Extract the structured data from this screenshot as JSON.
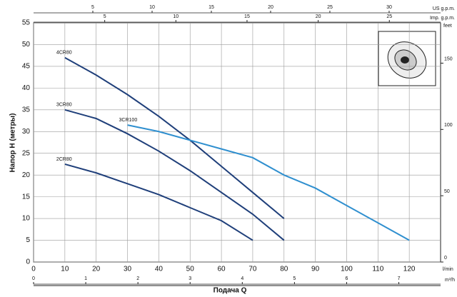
{
  "chart_data": {
    "type": "line",
    "xlabel": "Подача Q",
    "ylabel": "Напор H (метры)",
    "xunit": "l/min",
    "xlim": [
      0,
      130
    ],
    "xticks": [
      0,
      10,
      20,
      30,
      40,
      50,
      60,
      70,
      80,
      90,
      100,
      110,
      120
    ],
    "ylim": [
      0,
      55
    ],
    "yticks": [
      0,
      5,
      10,
      15,
      20,
      25,
      30,
      35,
      40,
      45,
      50,
      55
    ],
    "grid": true,
    "extra_axes": [
      {
        "label": "US g.p.m.",
        "position": "top",
        "lim": [
          0,
          34.34
        ],
        "ticks": [
          5,
          10,
          15,
          20,
          25,
          30
        ]
      },
      {
        "label": "Imp. g.p.m.",
        "position": "top",
        "lim": [
          0,
          28.6
        ],
        "ticks": [
          5,
          10,
          15,
          20,
          25
        ]
      },
      {
        "label": "m³/h",
        "position": "bottom",
        "lim": [
          0,
          7.8
        ],
        "ticks": [
          0,
          1,
          2,
          3,
          4,
          5,
          6,
          7
        ]
      },
      {
        "label": "feet",
        "position": "right",
        "lim": [
          0,
          180.4
        ],
        "ticks": [
          0,
          50,
          100,
          150
        ]
      }
    ],
    "series": [
      {
        "name": "4CR80",
        "color": "#1f3f7a",
        "x": [
          10,
          20,
          30,
          40,
          50,
          60,
          70,
          80
        ],
        "values": [
          47,
          43,
          38.5,
          33.5,
          28,
          22,
          16,
          10
        ]
      },
      {
        "name": "3CR80",
        "color": "#1f3f7a",
        "x": [
          10,
          20,
          30,
          40,
          50,
          60,
          70,
          80
        ],
        "values": [
          35,
          33,
          29.5,
          25.5,
          21,
          16,
          11,
          5
        ]
      },
      {
        "name": "2CR80",
        "color": "#1f3f7a",
        "x": [
          10,
          20,
          30,
          40,
          50,
          60,
          70
        ],
        "values": [
          22.5,
          20.5,
          18,
          15.5,
          12.5,
          9.5,
          5
        ]
      },
      {
        "name": "3CR100",
        "color": "#2f8fcf",
        "x": [
          30,
          40,
          50,
          60,
          70,
          80,
          90,
          100,
          110,
          120
        ],
        "values": [
          31.5,
          30,
          28,
          26,
          24,
          20,
          17,
          13,
          9,
          5
        ]
      }
    ]
  }
}
